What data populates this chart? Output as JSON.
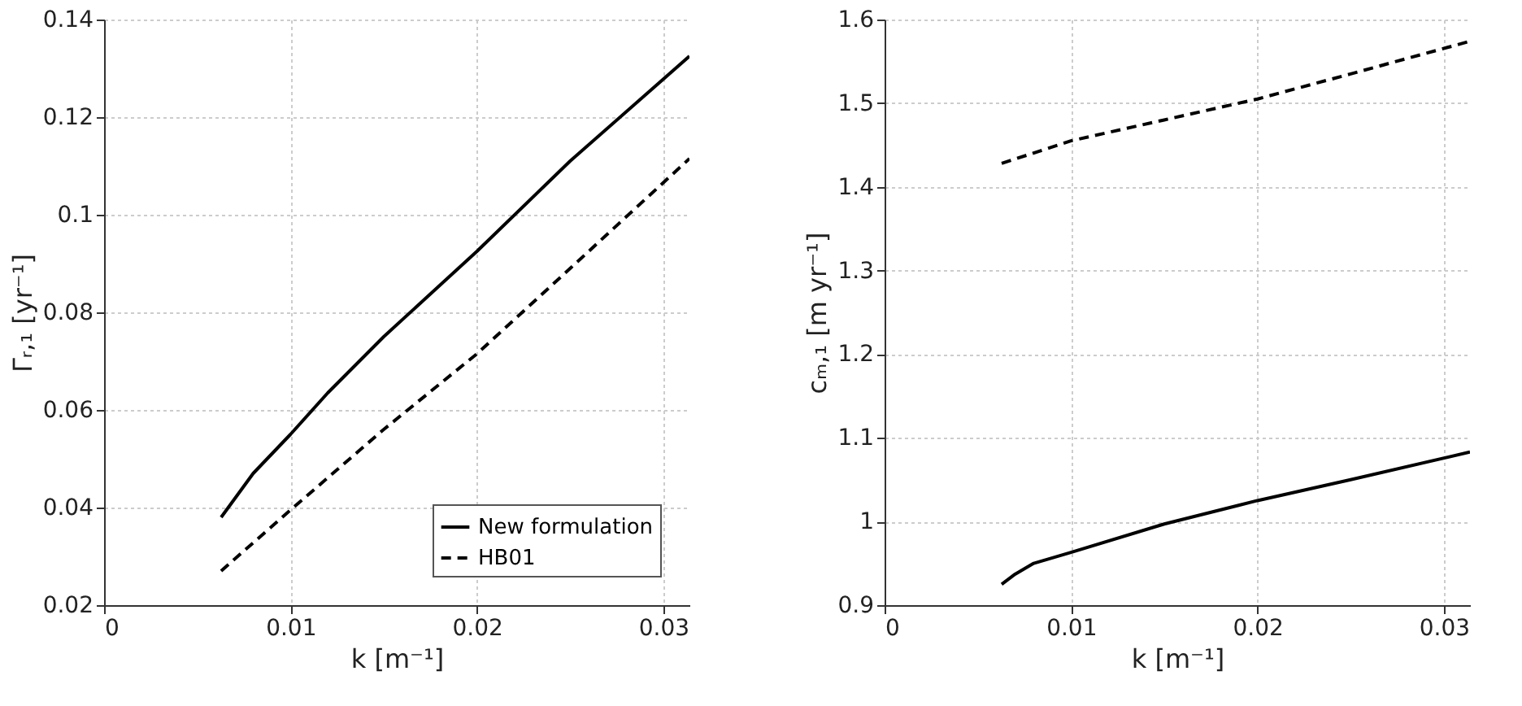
{
  "chart_data": [
    {
      "type": "line",
      "xlabel": "k [m⁻¹]",
      "ylabel": "Γᵣ,₁ [yr⁻¹]",
      "xlim": [
        0,
        0.0314
      ],
      "ylim": [
        0.02,
        0.14
      ],
      "xticks": [
        0,
        0.01,
        0.02,
        0.03
      ],
      "yticks": [
        0.02,
        0.04,
        0.06,
        0.08,
        0.1,
        0.12,
        0.14
      ],
      "grid": true,
      "legend": "bottom right",
      "series": [
        {
          "name": "New formulation",
          "color": "#000000",
          "line_style": "solid",
          "x": [
            0.00628,
            0.008,
            0.01,
            0.012,
            0.015,
            0.018,
            0.02,
            0.025,
            0.0314
          ],
          "values": [
            0.038,
            0.047,
            0.055,
            0.0635,
            0.075,
            0.0855,
            0.0925,
            0.111,
            0.1325
          ]
        },
        {
          "name": "HB01",
          "color": "#000000",
          "line_style": "dashed",
          "x": [
            0.00628,
            0.01,
            0.015,
            0.02,
            0.025,
            0.0314
          ],
          "values": [
            0.027,
            0.0395,
            0.056,
            0.0715,
            0.089,
            0.1115
          ]
        }
      ]
    },
    {
      "type": "line",
      "xlabel": "k [m⁻¹]",
      "ylabel": "cₘ,₁ [m yr⁻¹]",
      "xlim": [
        0,
        0.0314
      ],
      "ylim": [
        0.9,
        1.6
      ],
      "xticks": [
        0,
        0.01,
        0.02,
        0.03
      ],
      "yticks": [
        0.9,
        1,
        1.1,
        1.2,
        1.3,
        1.4,
        1.5,
        1.6
      ],
      "grid": true,
      "series": [
        {
          "color": "#000000",
          "line_style": "solid",
          "x": [
            0.00628,
            0.007,
            0.008,
            0.01,
            0.015,
            0.02,
            0.025,
            0.0314
          ],
          "values": [
            0.925,
            0.937,
            0.95,
            0.963,
            0.997,
            1.025,
            1.05,
            1.083
          ]
        },
        {
          "color": "#000000",
          "line_style": "dashed",
          "x": [
            0.00628,
            0.01,
            0.015,
            0.02,
            0.025,
            0.0314
          ],
          "values": [
            1.428,
            1.455,
            1.48,
            1.505,
            1.535,
            1.574
          ]
        }
      ]
    }
  ]
}
